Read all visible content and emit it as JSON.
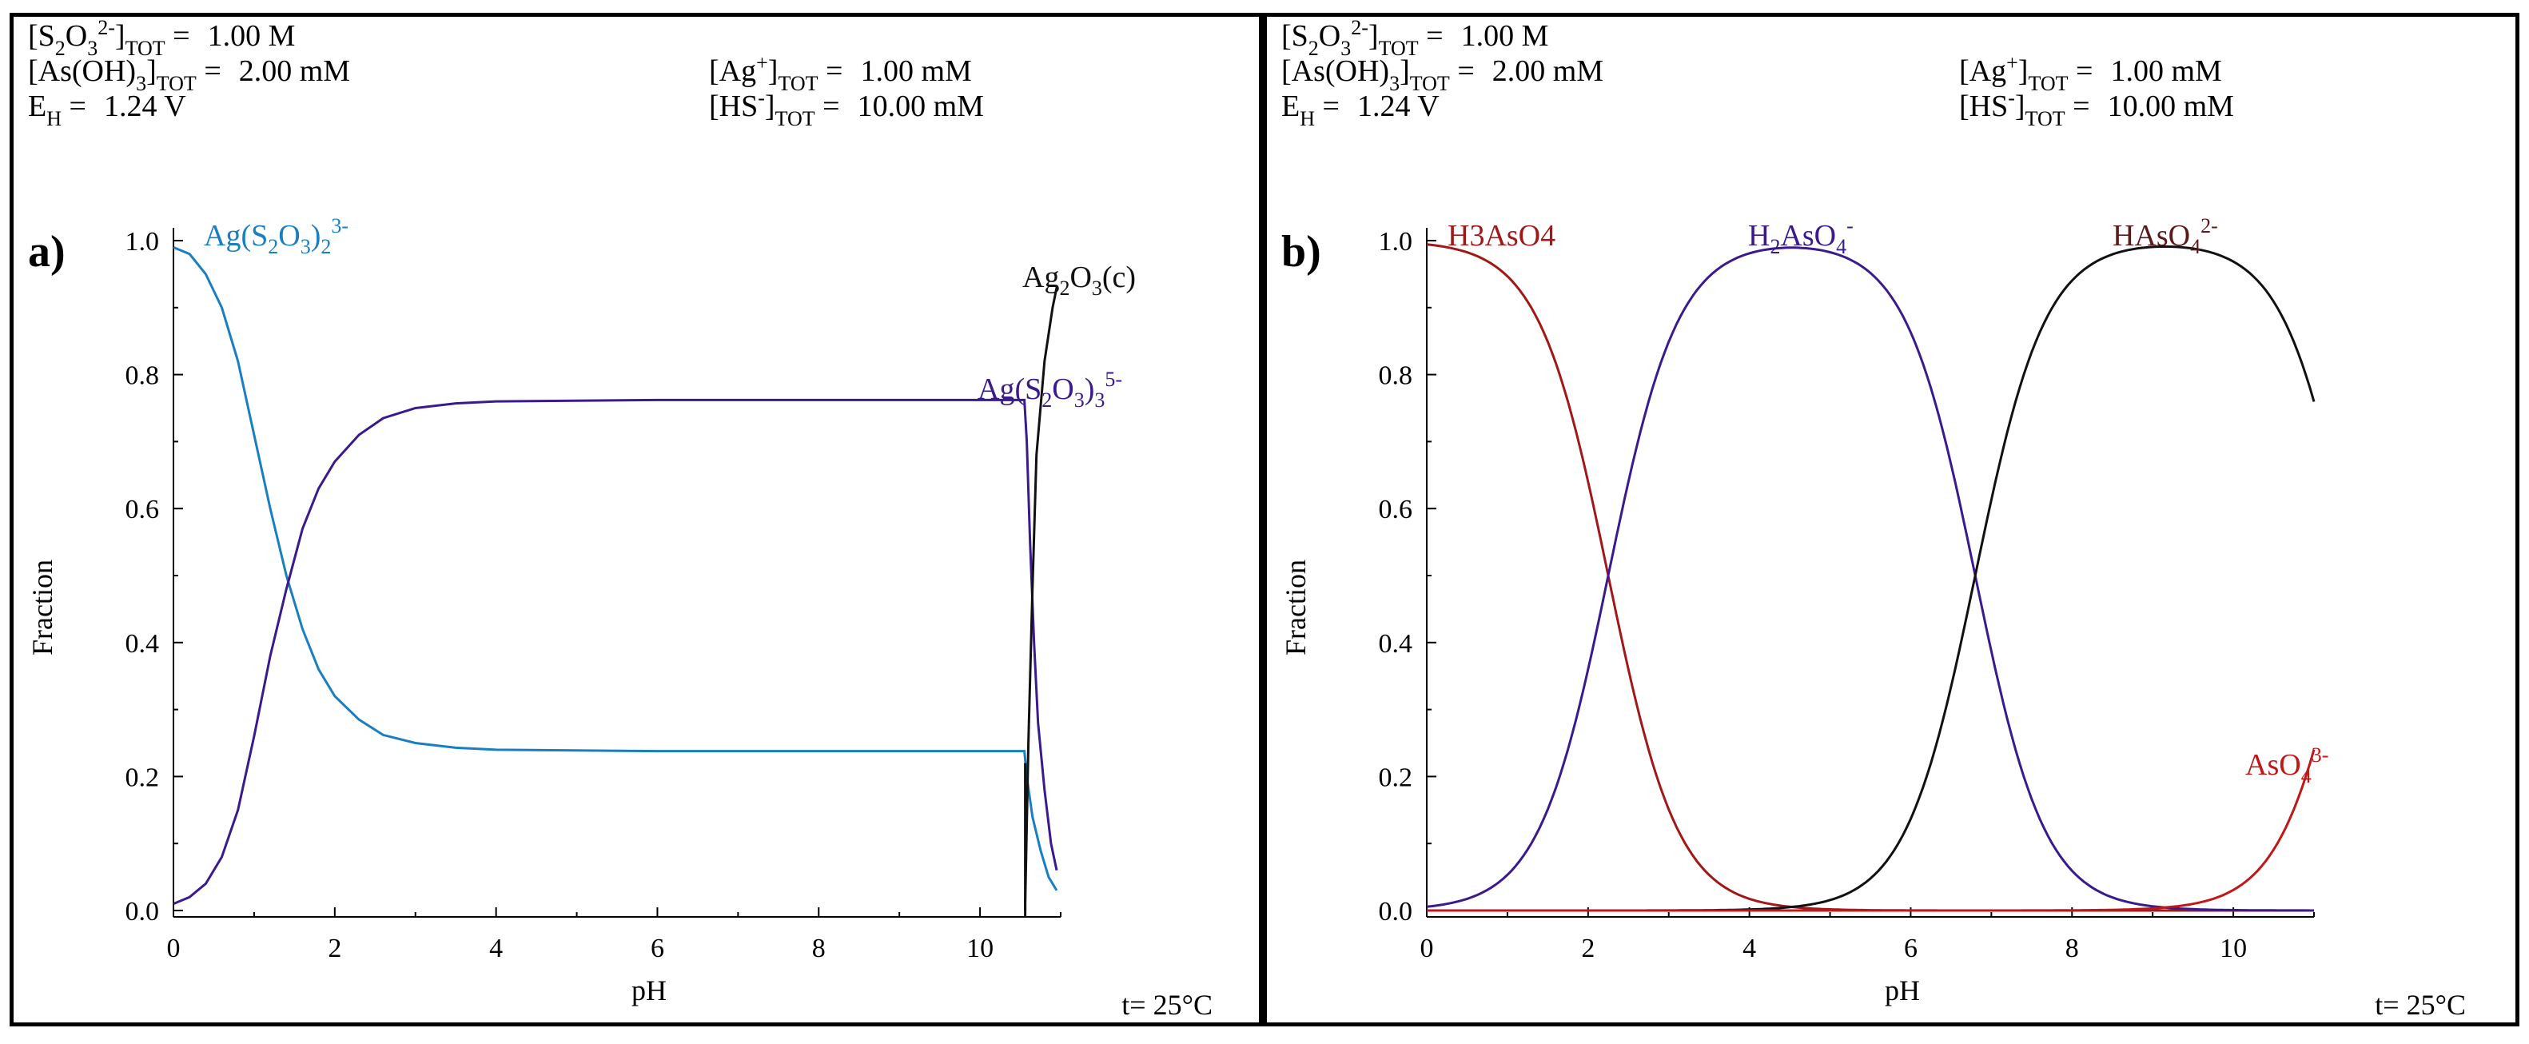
{
  "chart_data": [
    {
      "type": "line",
      "panel_label": "a)",
      "xlabel": "pH",
      "ylabel": "Fraction",
      "xlim": [
        0,
        11
      ],
      "ylim": [
        0,
        1
      ],
      "x_ticks": [
        "0",
        "2",
        "4",
        "6",
        "8",
        "10"
      ],
      "y_ticks": [
        "0.0",
        "0.2",
        "0.4",
        "0.6",
        "0.8",
        "1.0"
      ],
      "temperature": "t= 25°C",
      "conditions": {
        "s2o3": "1.00 M",
        "asoh3": "2.00 mM",
        "eh": "1.24 V",
        "ag": "1.00 mM",
        "hs": "10.00 mM"
      },
      "series": [
        {
          "name": "Ag(S2O3)2 3-",
          "label": {
            "base": "Ag(S",
            "s1": "2",
            "mid": "O",
            "s2": "3",
            "end": ")",
            "s3": "2",
            "charge": "3-"
          },
          "color": "#1a7fc1",
          "points": [
            [
              0,
              0.99
            ],
            [
              0.2,
              0.98
            ],
            [
              0.4,
              0.95
            ],
            [
              0.6,
              0.9
            ],
            [
              0.8,
              0.82
            ],
            [
              1.0,
              0.71
            ],
            [
              1.2,
              0.6
            ],
            [
              1.4,
              0.5
            ],
            [
              1.6,
              0.42
            ],
            [
              1.8,
              0.36
            ],
            [
              2.0,
              0.32
            ],
            [
              2.3,
              0.285
            ],
            [
              2.6,
              0.262
            ],
            [
              3.0,
              0.25
            ],
            [
              3.5,
              0.243
            ],
            [
              4.0,
              0.24
            ],
            [
              6.0,
              0.238
            ],
            [
              8.0,
              0.238
            ],
            [
              10.0,
              0.238
            ],
            [
              10.55,
              0.238
            ],
            [
              10.58,
              0.2
            ],
            [
              10.65,
              0.14
            ],
            [
              10.75,
              0.09
            ],
            [
              10.85,
              0.05
            ],
            [
              10.95,
              0.03
            ]
          ]
        },
        {
          "name": "Ag(S2O3)3 5-",
          "label": {
            "base": "Ag(S",
            "s1": "2",
            "mid": "O",
            "s2": "3",
            "end": ")",
            "s3": "3",
            "charge": "5-"
          },
          "color": "#3a1a8c",
          "points": [
            [
              0,
              0.01
            ],
            [
              0.2,
              0.02
            ],
            [
              0.4,
              0.04
            ],
            [
              0.6,
              0.08
            ],
            [
              0.8,
              0.15
            ],
            [
              1.0,
              0.26
            ],
            [
              1.2,
              0.38
            ],
            [
              1.4,
              0.48
            ],
            [
              1.6,
              0.57
            ],
            [
              1.8,
              0.63
            ],
            [
              2.0,
              0.67
            ],
            [
              2.3,
              0.71
            ],
            [
              2.6,
              0.735
            ],
            [
              3.0,
              0.75
            ],
            [
              3.5,
              0.757
            ],
            [
              4.0,
              0.76
            ],
            [
              6.0,
              0.762
            ],
            [
              8.0,
              0.762
            ],
            [
              10.0,
              0.762
            ],
            [
              10.55,
              0.762
            ],
            [
              10.58,
              0.7
            ],
            [
              10.62,
              0.55
            ],
            [
              10.67,
              0.4
            ],
            [
              10.72,
              0.28
            ],
            [
              10.8,
              0.18
            ],
            [
              10.88,
              0.1
            ],
            [
              10.95,
              0.06
            ]
          ]
        },
        {
          "name": "Ag2O3(c)",
          "label": {
            "base": "Ag",
            "s1": "2",
            "mid": "O",
            "s2": "3",
            "end": "(c)"
          },
          "color": "#111111",
          "points": [
            [
              10.56,
              0.0
            ],
            [
              10.56,
              0.01
            ],
            [
              10.6,
              0.25
            ],
            [
              10.65,
              0.48
            ],
            [
              10.7,
              0.68
            ],
            [
              10.8,
              0.82
            ],
            [
              10.9,
              0.9
            ],
            [
              10.95,
              0.93
            ]
          ]
        }
      ]
    },
    {
      "type": "line",
      "panel_label": "b)",
      "xlabel": "pH",
      "ylabel": "Fraction",
      "xlim": [
        0,
        11
      ],
      "ylim": [
        0,
        1
      ],
      "x_ticks": [
        "0",
        "2",
        "4",
        "6",
        "8",
        "10"
      ],
      "y_ticks": [
        "0.0",
        "0.2",
        "0.4",
        "0.6",
        "0.8",
        "1.0"
      ],
      "temperature": "t= 25°C",
      "conditions": {
        "s2o3": "1.00 M",
        "asoh3": "2.00 mM",
        "eh": "1.24 V",
        "ag": "1.00 mM",
        "hs": "10.00 mM"
      },
      "series": [
        {
          "name": "H3AsO4",
          "label": {
            "base": "H3AsO4"
          },
          "color": "#a01818",
          "pk": [
            2.25,
            6.8,
            11.5
          ],
          "species_index": 0,
          "x_range": [
            0,
            11
          ]
        },
        {
          "name": "H2AsO4-",
          "label": {
            "base": "H",
            "s1": "2",
            "mid": "AsO",
            "s2": "4",
            "charge": "-"
          },
          "color": "#3a1a8c",
          "pk": [
            2.25,
            6.8,
            11.5
          ],
          "species_index": 1,
          "x_range": [
            0,
            11
          ]
        },
        {
          "name": "HAsO4 2-",
          "label": {
            "base": "HAsO",
            "s1": "4",
            "charge": "2-"
          },
          "color": "#111111",
          "pk": [
            2.25,
            6.8,
            11.5
          ],
          "species_index": 2,
          "x_range": [
            0,
            11
          ]
        },
        {
          "name": "AsO4 3-",
          "label": {
            "base": "AsO",
            "s1": "4",
            "charge": "3-"
          },
          "color": "#c01818",
          "pk": [
            2.25,
            6.8,
            11.5
          ],
          "species_index": 3,
          "x_range": [
            0,
            11
          ]
        }
      ]
    }
  ]
}
